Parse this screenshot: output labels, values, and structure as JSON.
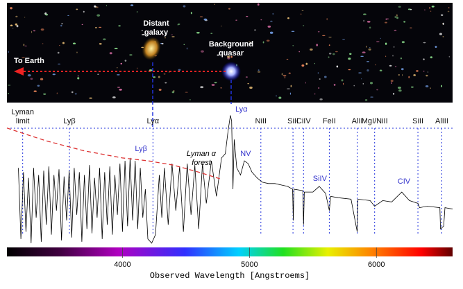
{
  "chart_data": {
    "type": "line",
    "xlabel": "Observed Wavelength [Angstroems]",
    "xlim": [
      3090,
      6600
    ],
    "xticks": [
      4000,
      5000,
      6000
    ],
    "ylim": [
      0,
      100
    ],
    "image_labels": {
      "galaxy": [
        "Distant",
        "galaxy"
      ],
      "quasar": [
        "Background",
        "quasar"
      ],
      "earth": "To Earth"
    },
    "forest_label": [
      "Lyman α",
      "forest"
    ],
    "absorption_lines": [
      {
        "label": [
          "Lyman",
          "limit"
        ],
        "wavelength": 3214
      },
      {
        "label": [
          "Lyβ"
        ],
        "wavelength": 3582
      },
      {
        "label": [
          "Lyα"
        ],
        "wavelength": 4240
      },
      {
        "label": [
          "NiII"
        ],
        "wavelength": 5090
      },
      {
        "label": [
          "SiII"
        ],
        "wavelength": 5343
      },
      {
        "label": [
          "CiIV"
        ],
        "wavelength": 5426
      },
      {
        "label": [
          "FeII"
        ],
        "wavelength": 5629
      },
      {
        "label": [
          "AlII"
        ],
        "wavelength": 5849
      },
      {
        "label": [
          "MgI/NiII"
        ],
        "wavelength": 5986
      },
      {
        "label": [
          "SiII"
        ],
        "wavelength": 6327
      },
      {
        "label": [
          "AlIII"
        ],
        "wavelength": 6515
      }
    ],
    "emission_lines": [
      {
        "label": "Lyα",
        "wavelength": 4860,
        "color": "#3333cc"
      },
      {
        "label": "Lyβ",
        "wavelength": 4146,
        "color": "#3333cc"
      },
      {
        "label": "NV",
        "wavelength": 4970,
        "color": "#3333cc"
      },
      {
        "label": "SiIV",
        "wavelength": 5555,
        "color": "#3333cc"
      },
      {
        "label": "CIV",
        "wavelength": 6217,
        "color": "#3333cc"
      }
    ],
    "series": [
      {
        "color": "#000000",
        "x": [
          3180,
          3200,
          3220,
          3240,
          3260,
          3280,
          3300,
          3320,
          3340,
          3360,
          3380,
          3400,
          3420,
          3440,
          3460,
          3480,
          3500,
          3520,
          3540,
          3560,
          3580,
          3600,
          3620,
          3640,
          3660,
          3680,
          3700,
          3720,
          3740,
          3760,
          3780,
          3800,
          3820,
          3840,
          3860,
          3880,
          3900,
          3920,
          3940,
          3960,
          3980,
          4000,
          4020,
          4040,
          4060,
          4080,
          4100,
          4120,
          4140,
          4160,
          4180,
          4200,
          4230,
          4260,
          4290,
          4310,
          4330,
          4360,
          4390,
          4420,
          4450,
          4480,
          4510,
          4540,
          4570,
          4600,
          4630,
          4660,
          4700,
          4740,
          4780,
          4810,
          4830,
          4850,
          4860,
          4870,
          4880,
          4900,
          4930,
          4960,
          4990,
          5020,
          5060,
          5100,
          5150,
          5200,
          5250,
          5300,
          5340,
          5345,
          5350,
          5420,
          5426,
          5432,
          5500,
          5550,
          5600,
          5629,
          5640,
          5700,
          5800,
          5849,
          5855,
          5950,
          5986,
          6050,
          6120,
          6200,
          6260,
          6327,
          6340,
          6400,
          6500,
          6505,
          6530,
          6540,
          6600
        ],
        "values": [
          55,
          5,
          52,
          10,
          48,
          2,
          55,
          20,
          50,
          3,
          53,
          15,
          56,
          8,
          50,
          25,
          54,
          4,
          49,
          18,
          53,
          6,
          55,
          22,
          52,
          3,
          50,
          12,
          57,
          9,
          48,
          20,
          55,
          5,
          52,
          15,
          56,
          8,
          50,
          22,
          58,
          10,
          60,
          14,
          62,
          18,
          60,
          12,
          55,
          20,
          40,
          5,
          2,
          8,
          50,
          20,
          55,
          15,
          58,
          25,
          56,
          10,
          58,
          22,
          57,
          12,
          58,
          30,
          60,
          35,
          62,
          65,
          80,
          92,
          88,
          40,
          75,
          55,
          50,
          60,
          58,
          52,
          48,
          45,
          44,
          44,
          43,
          42,
          40,
          18,
          40,
          39,
          15,
          38,
          38,
          42,
          37,
          25,
          35,
          34,
          33,
          10,
          33,
          32,
          28,
          32,
          31,
          38,
          32,
          30,
          27,
          28,
          27,
          12,
          14,
          27,
          26
        ]
      },
      {
        "color": "#dd3333",
        "x": [
          3090,
          3400,
          3700,
          4000,
          4200,
          4400,
          4600,
          4780
        ],
        "values": [
          83,
          74,
          67,
          62,
          60,
          57,
          52,
          47
        ]
      }
    ]
  }
}
